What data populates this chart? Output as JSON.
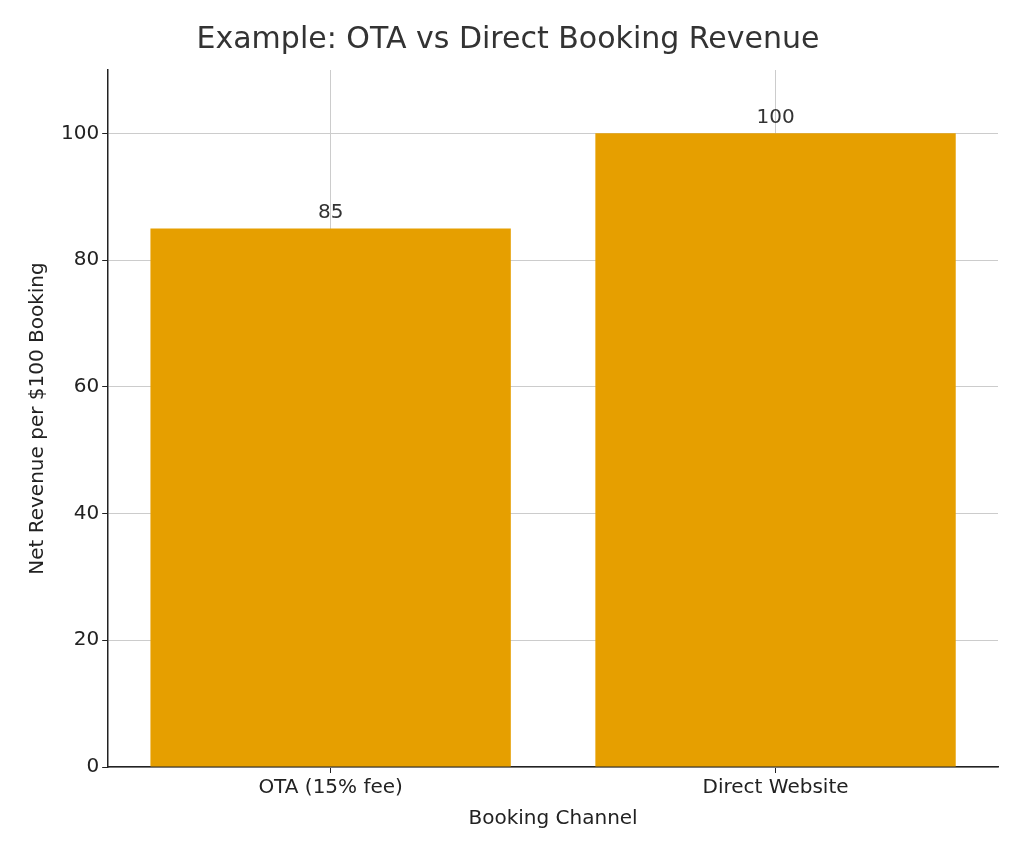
{
  "chart_data": {
    "type": "bar",
    "title": "Example: OTA vs Direct Booking Revenue",
    "xlabel": "Booking Channel",
    "ylabel": "Net Revenue per $100 Booking",
    "categories": [
      "OTA (15% fee)",
      "Direct Website"
    ],
    "values": [
      85,
      100
    ],
    "color": "#e69f00",
    "ylim": [
      0,
      110
    ],
    "yticks": [
      0,
      20,
      40,
      60,
      80,
      100
    ],
    "grid": true,
    "data_labels": true
  }
}
